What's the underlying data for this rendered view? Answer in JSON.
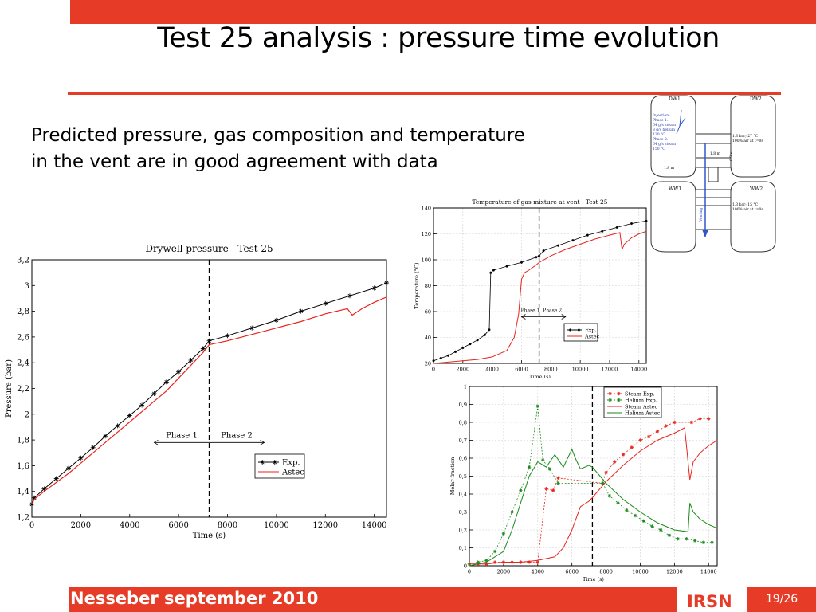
{
  "slide": {
    "title": "Test 25 analysis : pressure time evolution",
    "body_line1": "Predicted pressure, gas composition and temperature",
    "body_line2": "in the vent are in good agreement with data"
  },
  "footer": {
    "text": "Nesseber september 2010",
    "logo": "IRSN",
    "page": "19/26"
  },
  "colors": {
    "accent": "#e63b26",
    "exp": "#000000",
    "astec": "#e8231c",
    "steam": "#e8231c",
    "helium": "#1a8a1a"
  },
  "diagram": {
    "dw1": "DW1",
    "dw2": "DW2",
    "ww1": "WW1",
    "ww2": "WW2",
    "injection_lines": [
      "Injection:",
      "Phase 1:",
      "64 g/s steam",
      "8 g/s helium",
      "120 °C",
      "Phase 2:",
      "64 g/s steam",
      "150 °C"
    ],
    "dw2_cond": [
      "1.3 bar; 27 °C",
      "100% air at t=0s"
    ],
    "ww2_cond": [
      "1.3 bar; 15 °C",
      "100% air at t=0s"
    ],
    "dim_a": "1.8 m",
    "dim_b": "1.8 m",
    "dim_c": "0.3 m",
    "vent_label": "Venting"
  },
  "chart_data": [
    {
      "type": "line",
      "title": "Drywell pressure - Test 25",
      "xlabel": "Time (s)",
      "ylabel": "Pressure (bar)",
      "xlim": [
        0,
        14500
      ],
      "ylim": [
        1.2,
        3.2
      ],
      "xticks": [
        0,
        2000,
        4000,
        6000,
        8000,
        10000,
        12000,
        14000
      ],
      "yticks": [
        1.2,
        1.4,
        1.6,
        1.8,
        2,
        2.2,
        2.4,
        2.6,
        2.8,
        3,
        3.2
      ],
      "ytick_labels": [
        "1,2",
        "1,4",
        "1,6",
        "1,8",
        "2",
        "2,2",
        "2,4",
        "2,6",
        "2,8",
        "3",
        "3,2"
      ],
      "phase_line_x": 7250,
      "phase1": "Phase 1",
      "phase2": "Phase 2",
      "legend": [
        "Exp.",
        "Astec"
      ],
      "series": [
        {
          "name": "Exp.",
          "marker": "star",
          "x": [
            0,
            100,
            500,
            1000,
            1500,
            2000,
            2500,
            3000,
            3500,
            4000,
            4500,
            5000,
            5500,
            6000,
            6500,
            7000,
            7250,
            8000,
            9000,
            10000,
            11000,
            12000,
            13000,
            14000,
            14500
          ],
          "y": [
            1.3,
            1.35,
            1.42,
            1.5,
            1.58,
            1.66,
            1.74,
            1.83,
            1.91,
            1.99,
            2.07,
            2.16,
            2.25,
            2.33,
            2.42,
            2.51,
            2.57,
            2.61,
            2.67,
            2.73,
            2.8,
            2.86,
            2.92,
            2.98,
            3.02
          ]
        },
        {
          "name": "Astec",
          "x": [
            0,
            100,
            500,
            1000,
            1500,
            2000,
            2500,
            3000,
            3500,
            4000,
            4500,
            5000,
            5500,
            6000,
            6500,
            7000,
            7250,
            8000,
            9000,
            10000,
            11000,
            12000,
            12900,
            13100,
            13500,
            14000,
            14500
          ],
          "y": [
            1.3,
            1.34,
            1.4,
            1.47,
            1.54,
            1.62,
            1.7,
            1.78,
            1.86,
            1.94,
            2.02,
            2.1,
            2.18,
            2.28,
            2.38,
            2.48,
            2.54,
            2.57,
            2.62,
            2.67,
            2.72,
            2.78,
            2.82,
            2.77,
            2.82,
            2.87,
            2.91
          ]
        }
      ]
    },
    {
      "type": "line",
      "title": "Temperature of gas mixture at vent - Test 25",
      "xlabel": "Time (s)",
      "ylabel": "Temperature (°C)",
      "xlim": [
        0,
        14500
      ],
      "ylim": [
        20,
        140
      ],
      "xticks": [
        0,
        2000,
        4000,
        6000,
        8000,
        10000,
        12000,
        14000
      ],
      "yticks": [
        20,
        40,
        60,
        80,
        100,
        120,
        140
      ],
      "phase_line_x": 7200,
      "phase1": "Phase 1",
      "phase2": "Phase 2",
      "legend": [
        "Exp.",
        "Astec"
      ],
      "series": [
        {
          "name": "Exp.",
          "marker": "star",
          "x": [
            0,
            500,
            1000,
            1500,
            2000,
            2500,
            3000,
            3500,
            3800,
            3900,
            4100,
            5000,
            6000,
            7000,
            7200,
            7500,
            8500,
            9500,
            10500,
            11500,
            12500,
            13500,
            14500
          ],
          "y": [
            22,
            24,
            26,
            29,
            32,
            35,
            38,
            42,
            46,
            90,
            92,
            95,
            98,
            102,
            103,
            107,
            111,
            115,
            119,
            122,
            125,
            128,
            130
          ]
        },
        {
          "name": "Astec",
          "x": [
            0,
            1000,
            2000,
            3000,
            4000,
            5000,
            5500,
            5800,
            6000,
            6200,
            6500,
            7000,
            7200,
            8000,
            9000,
            10000,
            11000,
            12000,
            12700,
            12850,
            13000,
            13500,
            14000,
            14500
          ],
          "y": [
            20,
            21,
            22,
            23,
            25,
            30,
            40,
            58,
            85,
            90,
            92,
            96,
            98,
            103,
            108,
            112,
            116,
            119,
            121,
            108,
            112,
            117,
            120,
            122
          ]
        }
      ]
    },
    {
      "type": "line",
      "title": "",
      "xlabel": "Time (s)",
      "ylabel": "Molar fraction",
      "xlim": [
        0,
        14500
      ],
      "ylim": [
        0,
        1
      ],
      "xticks": [
        0,
        2000,
        4000,
        6000,
        8000,
        10000,
        12000,
        14000
      ],
      "yticks": [
        0,
        0.1,
        0.2,
        0.3,
        0.4,
        0.5,
        0.6,
        0.7,
        0.8,
        0.9,
        1
      ],
      "ytick_labels": [
        "0",
        "0,1",
        "0,2",
        "0,3",
        "0,4",
        "0,5",
        "0,6",
        "0,7",
        "0,8",
        "0,9",
        "1"
      ],
      "phase_line_x": 7200,
      "legend": [
        "Steam Exp.",
        "Helium Exp.",
        "Steam Astec",
        "Helium Astec"
      ],
      "series": [
        {
          "name": "Steam Exp.",
          "marker": "star",
          "dashed": true,
          "x": [
            0,
            500,
            1000,
            1500,
            2000,
            2500,
            3000,
            3500,
            4000,
            4500,
            4900,
            5200,
            7800,
            8000,
            8500,
            9000,
            9500,
            10000,
            10500,
            11000,
            11500,
            12000,
            13000,
            13500,
            14000
          ],
          "y": [
            0.01,
            0.01,
            0.01,
            0.02,
            0.02,
            0.02,
            0.02,
            0.02,
            0.02,
            0.43,
            0.42,
            0.49,
            0.46,
            0.52,
            0.58,
            0.62,
            0.66,
            0.7,
            0.72,
            0.75,
            0.78,
            0.8,
            0.8,
            0.82,
            0.82
          ]
        },
        {
          "name": "Helium Exp.",
          "marker": "star",
          "dashed": true,
          "x": [
            0,
            500,
            1000,
            1500,
            2000,
            2500,
            3000,
            3500,
            4000,
            4300,
            4700,
            5200,
            7800,
            8200,
            8700,
            9200,
            9700,
            10200,
            10700,
            11200,
            11700,
            12200,
            12700,
            13200,
            13700,
            14200
          ],
          "y": [
            0.01,
            0.02,
            0.03,
            0.08,
            0.18,
            0.3,
            0.42,
            0.55,
            0.89,
            0.59,
            0.54,
            0.46,
            0.46,
            0.39,
            0.35,
            0.31,
            0.28,
            0.25,
            0.22,
            0.2,
            0.17,
            0.15,
            0.15,
            0.14,
            0.13,
            0.13
          ]
        },
        {
          "name": "Steam Astec",
          "x": [
            0,
            1000,
            2000,
            3000,
            4000,
            5000,
            5500,
            6000,
            6500,
            7000,
            7200,
            8000,
            9000,
            10000,
            11000,
            12000,
            12600,
            12900,
            13100,
            13500,
            14000,
            14500
          ],
          "y": [
            0.01,
            0.01,
            0.02,
            0.02,
            0.03,
            0.05,
            0.1,
            0.2,
            0.33,
            0.36,
            0.38,
            0.47,
            0.56,
            0.64,
            0.7,
            0.74,
            0.77,
            0.48,
            0.58,
            0.63,
            0.67,
            0.7
          ]
        },
        {
          "name": "Helium Astec",
          "x": [
            0,
            1000,
            2000,
            2500,
            3000,
            3500,
            4000,
            4500,
            5000,
            5500,
            6000,
            6200,
            6500,
            7000,
            7200,
            8000,
            9000,
            10000,
            11000,
            12000,
            12800,
            12900,
            13100,
            13500,
            14000,
            14500
          ],
          "y": [
            0.0,
            0.02,
            0.08,
            0.2,
            0.35,
            0.5,
            0.58,
            0.55,
            0.62,
            0.55,
            0.65,
            0.6,
            0.54,
            0.56,
            0.55,
            0.46,
            0.37,
            0.3,
            0.24,
            0.2,
            0.19,
            0.35,
            0.3,
            0.26,
            0.23,
            0.21
          ]
        }
      ]
    }
  ]
}
